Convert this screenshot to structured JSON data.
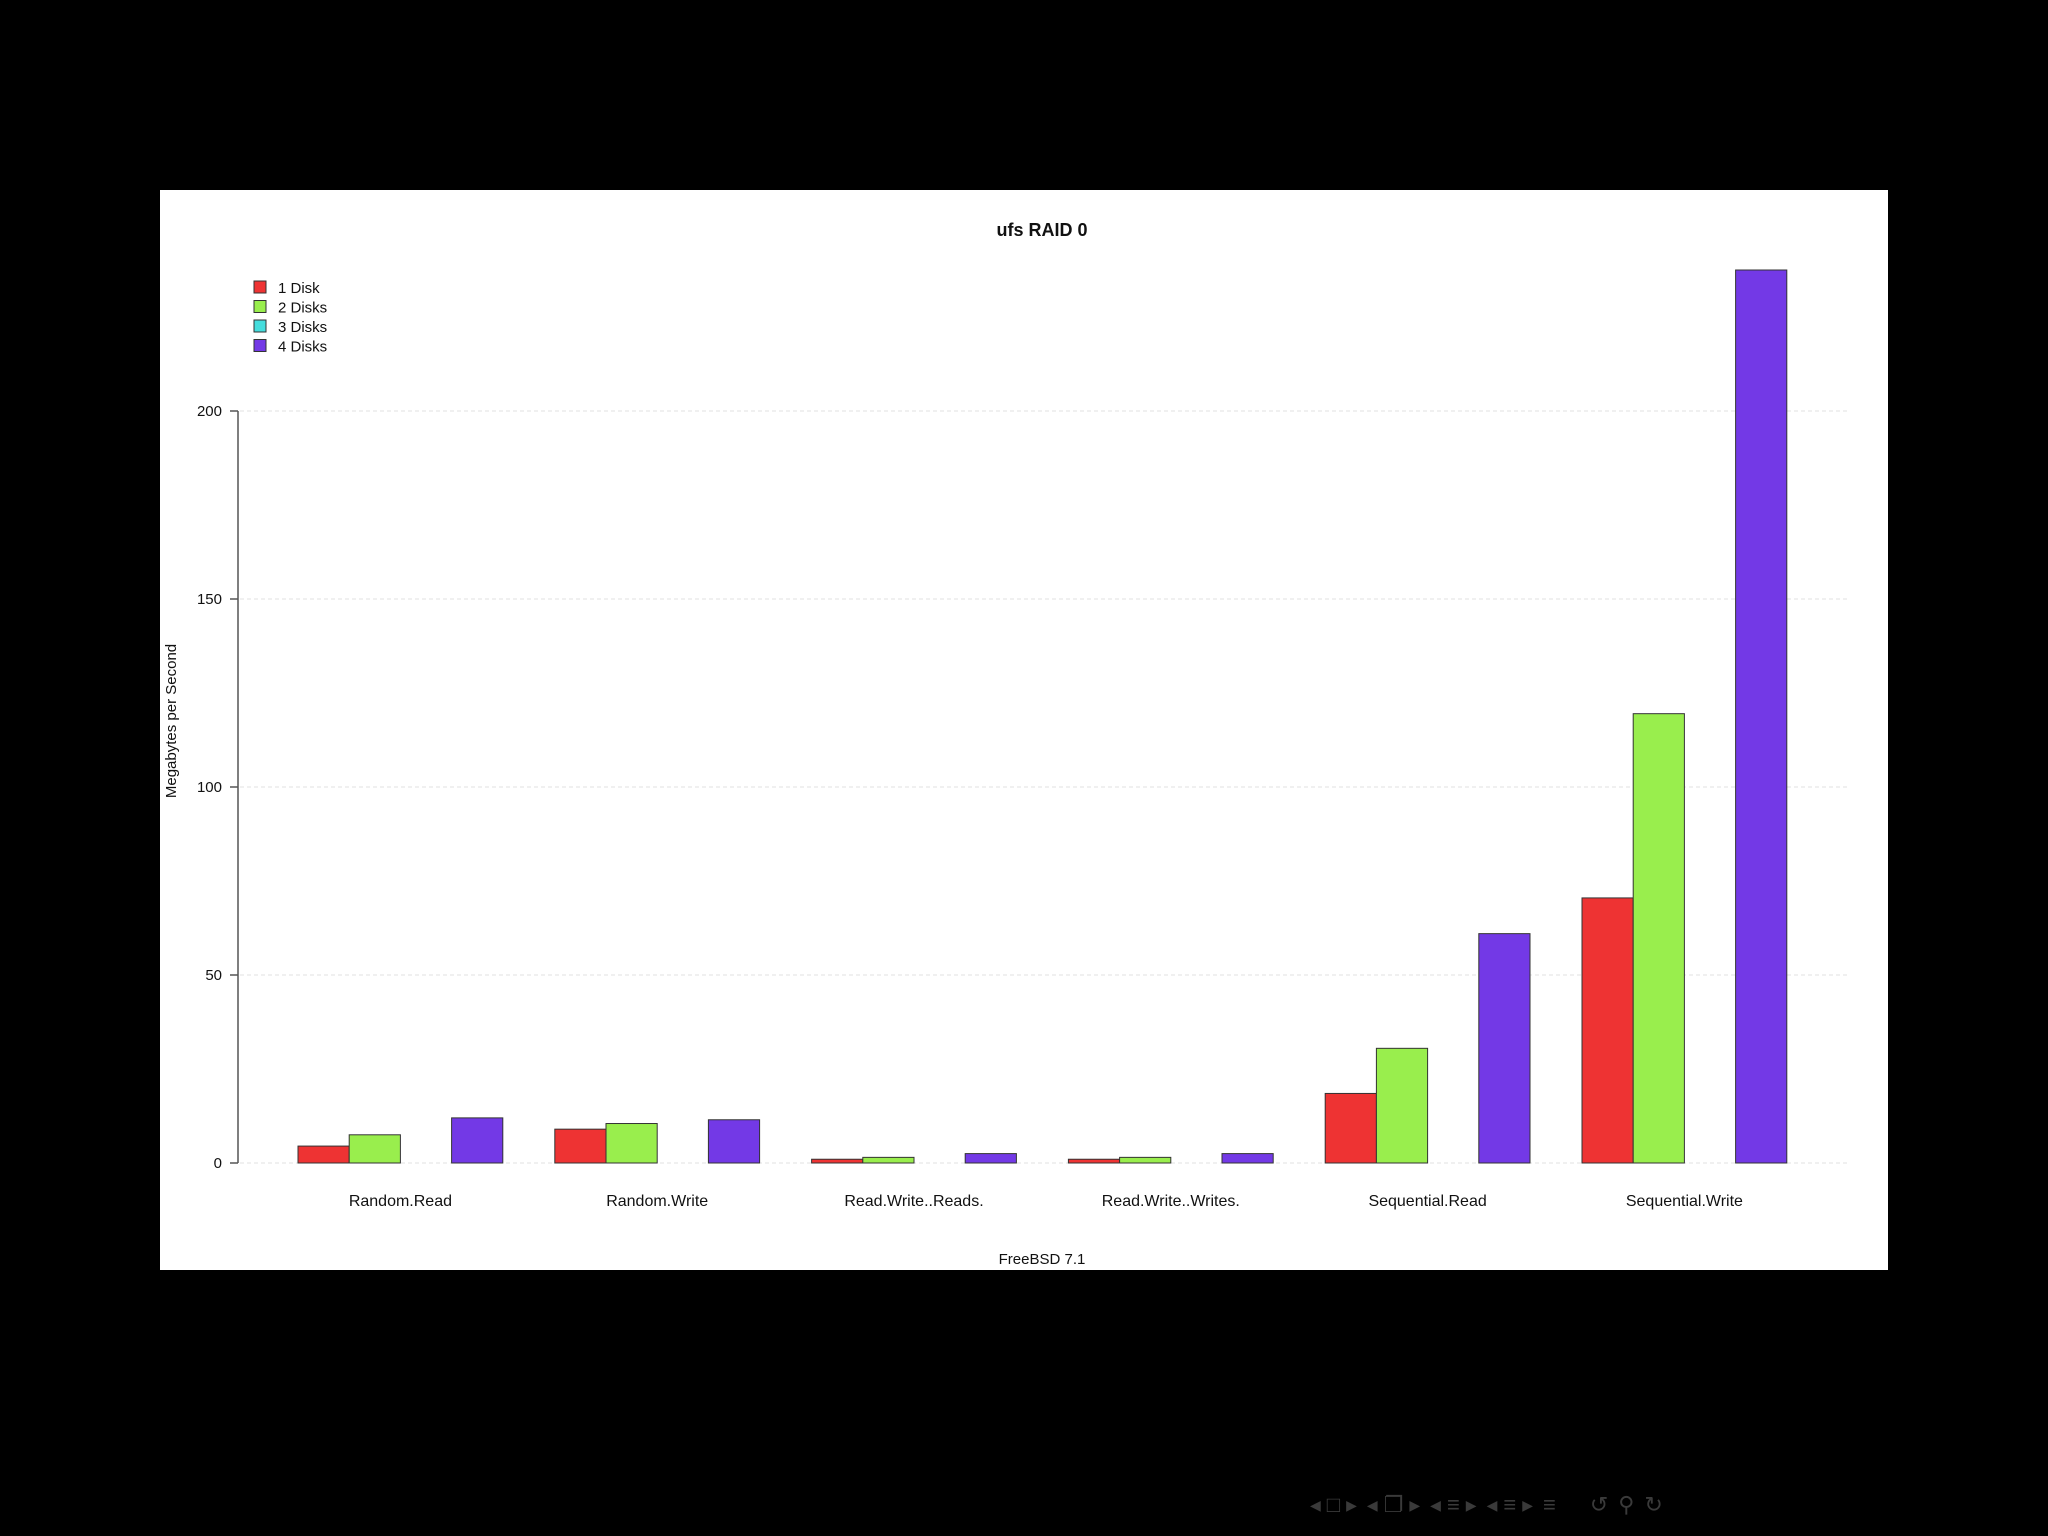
{
  "chart_data": {
    "type": "bar",
    "title": "ufs RAID 0",
    "xlabel": "FreeBSD 7.1",
    "ylabel": "Megabytes per Second",
    "ylim": [
      0,
      240
    ],
    "yticks": [
      0,
      50,
      100,
      150,
      200
    ],
    "grid": "horizontal dashed",
    "legend_position": "top-left",
    "categories": [
      "Random.Read",
      "Random.Write",
      "Read.Write..Reads.",
      "Read.Write..Writes.",
      "Sequential.Read",
      "Sequential.Write"
    ],
    "series": [
      {
        "name": "1 Disk",
        "color": "#ee3333",
        "values": [
          4.5,
          9,
          1,
          1,
          18.5,
          70.5
        ]
      },
      {
        "name": "2 Disks",
        "color": "#99ee4d",
        "values": [
          7.5,
          10.5,
          1.5,
          1.5,
          30.5,
          119.5
        ]
      },
      {
        "name": "3 Disks",
        "color": "#44dddd",
        "values": [
          0,
          0,
          0,
          0,
          0,
          0
        ]
      },
      {
        "name": "4 Disks",
        "color": "#7339e6",
        "values": [
          12,
          11.5,
          2.5,
          2.5,
          61,
          237.5
        ]
      }
    ]
  },
  "nav": {
    "icons": [
      "frame-nav-icon",
      "subsection-nav-icon",
      "section-nav-icon",
      "outline-nav-icon",
      "back-icon",
      "search-icon",
      "forward-icon"
    ]
  }
}
